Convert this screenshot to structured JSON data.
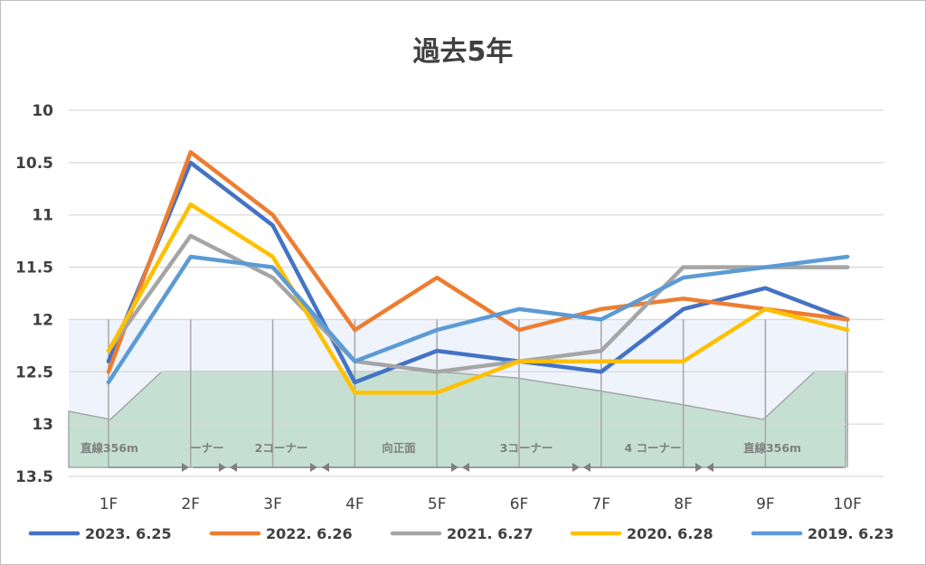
{
  "chart_data": {
    "type": "line",
    "title": "過去5年",
    "categories": [
      "1F",
      "2F",
      "3F",
      "4F",
      "5F",
      "6F",
      "7F",
      "8F",
      "9F",
      "10F"
    ],
    "y_ticks": [
      "10",
      "10.5",
      "11",
      "11.5",
      "12",
      "12.5",
      "13",
      "13.5"
    ],
    "ylim": [
      10,
      13.5
    ],
    "y_reversed": true,
    "grid": true,
    "legend_position": "bottom",
    "series": [
      {
        "name": "2023. 6.25",
        "color": "#4472c4",
        "values": [
          12.4,
          10.5,
          11.1,
          12.6,
          12.3,
          12.4,
          12.5,
          11.9,
          11.7,
          12.0
        ]
      },
      {
        "name": "2022. 6.26",
        "color": "#ed7d31",
        "values": [
          12.5,
          10.4,
          11.0,
          12.1,
          11.6,
          12.1,
          11.9,
          11.8,
          11.9,
          12.0
        ]
      },
      {
        "name": "2021. 6.27",
        "color": "#a5a5a5",
        "values": [
          12.3,
          11.2,
          11.6,
          12.4,
          12.5,
          12.4,
          12.3,
          11.5,
          11.5,
          11.5
        ]
      },
      {
        "name": "2020. 6.28",
        "color": "#ffc000",
        "values": [
          12.3,
          10.9,
          11.4,
          12.7,
          12.7,
          12.4,
          12.4,
          12.4,
          11.9,
          12.1
        ]
      },
      {
        "name": "2019. 6.23",
        "color": "#5b9bd5",
        "values": [
          12.6,
          11.4,
          11.5,
          12.4,
          12.1,
          11.9,
          12.0,
          11.6,
          11.5,
          11.4
        ]
      }
    ],
    "course_sections": [
      {
        "label": "直線356m"
      },
      {
        "label": "ーナー"
      },
      {
        "label": "2コーナー"
      },
      {
        "label": "向正面"
      },
      {
        "label": "3コーナー"
      },
      {
        "label": "4 コーナー"
      },
      {
        "label": "直線356m"
      }
    ],
    "colors": {
      "band": "#eef3fc",
      "track": "#c5e0d3",
      "section_label": "#7f7f7f",
      "gridline": "#d9d9d9"
    }
  }
}
